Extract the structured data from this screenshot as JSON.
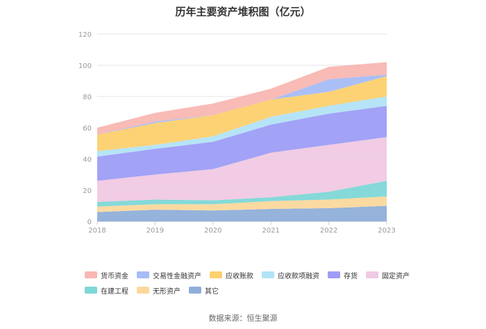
{
  "chart_data": {
    "type": "area",
    "stacked": true,
    "title": "历年主要资产堆积图（亿元）",
    "x": [
      "2018",
      "2019",
      "2020",
      "2021",
      "2022",
      "2023"
    ],
    "ylim": [
      0,
      120
    ],
    "yticks": [
      0,
      20,
      40,
      60,
      80,
      100,
      120
    ],
    "series": [
      {
        "name": "其它",
        "color": "#8fafd9",
        "values": [
          6,
          7.5,
          7,
          8,
          8.5,
          10
        ]
      },
      {
        "name": "无形资产",
        "color": "#fbd89c",
        "values": [
          3.5,
          3.5,
          4,
          5,
          5.5,
          6
        ]
      },
      {
        "name": "在建工程",
        "color": "#7ed7d6",
        "values": [
          3,
          3,
          2.5,
          2.5,
          5,
          10
        ]
      },
      {
        "name": "固定资产",
        "color": "#f0c9e3",
        "values": [
          13.5,
          16,
          20,
          28.5,
          30,
          28
        ]
      },
      {
        "name": "存货",
        "color": "#9d9df5",
        "values": [
          15.5,
          16.5,
          17.5,
          18,
          20,
          20
        ]
      },
      {
        "name": "应收款项融资",
        "color": "#b2e3f7",
        "values": [
          3.5,
          2.5,
          3.5,
          5,
          5,
          6
        ]
      },
      {
        "name": "应收账款",
        "color": "#fcd06e",
        "values": [
          10.5,
          14,
          13.5,
          11,
          9,
          13
        ]
      },
      {
        "name": "交易性金融资产",
        "color": "#a6bcf7",
        "values": [
          0,
          1,
          0,
          0,
          8,
          1
        ]
      },
      {
        "name": "货币资金",
        "color": "#f8b7b2",
        "values": [
          4.5,
          5.5,
          7.5,
          7,
          8,
          8
        ]
      }
    ]
  },
  "legend_order": [
    "货币资金",
    "交易性金融资产",
    "应收账款",
    "应收款项融资",
    "存货",
    "固定资产",
    "在建工程",
    "无形资产",
    "其它"
  ],
  "source": "数据来源：恒生聚源"
}
